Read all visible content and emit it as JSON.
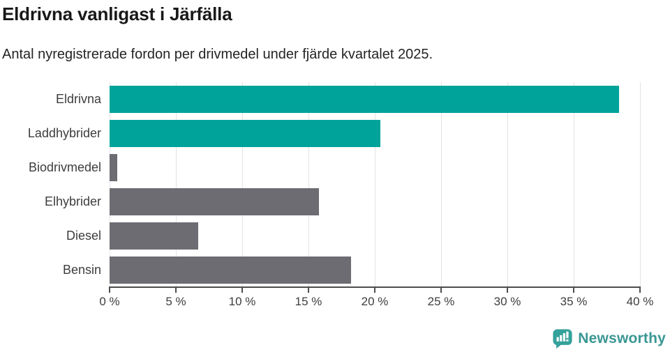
{
  "header": {
    "title": "Eldrivna vanligast i Järfälla",
    "subtitle": "Antal nyregistrerade fordon per drivmedel under fjärde kvartalet 2025."
  },
  "chart_data": {
    "type": "bar",
    "orientation": "horizontal",
    "title": "Eldrivna vanligast i Järfälla",
    "subtitle": "Antal nyregistrerade fordon per drivmedel under fjärde kvartalet 2025.",
    "categories": [
      "Eldrivna",
      "Laddhybrider",
      "Biodrivmedel",
      "Elhybrider",
      "Diesel",
      "Bensin"
    ],
    "values": [
      38.4,
      20.4,
      0.6,
      15.8,
      6.7,
      18.2
    ],
    "bar_colors": [
      "#00a39a",
      "#00a39a",
      "#6c6c72",
      "#6c6c72",
      "#6c6c72",
      "#6c6c72"
    ],
    "highlight_color": "#00a39a",
    "default_color": "#6c6c72",
    "xlabel": "",
    "ylabel": "",
    "xlim": [
      0,
      40
    ],
    "x_ticks": [
      0,
      5,
      10,
      15,
      20,
      25,
      30,
      35,
      40
    ],
    "x_tick_labels": [
      "0 %",
      "5 %",
      "10 %",
      "15 %",
      "20 %",
      "25 %",
      "30 %",
      "35 %",
      "40 %"
    ],
    "grid": true,
    "gridline_color": "#e3e3e3",
    "axis_color": "#4d4d4d",
    "legend": false
  },
  "footer": {
    "brand": "Newsworthy",
    "brand_color": "#3a9793",
    "icon_color": "#35a19b"
  }
}
